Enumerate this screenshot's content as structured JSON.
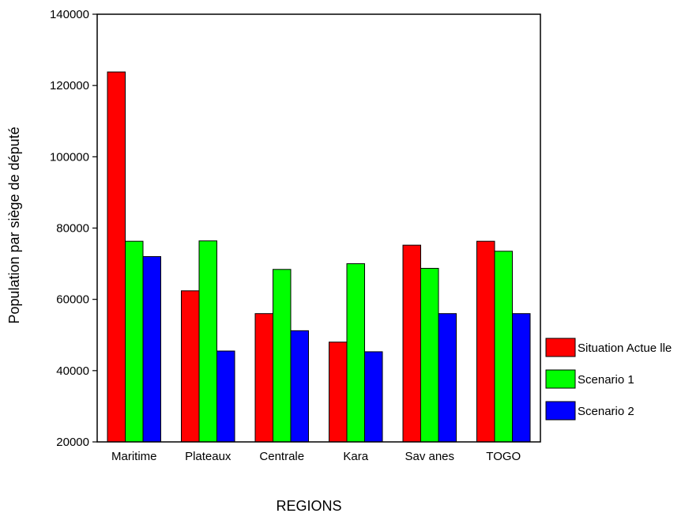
{
  "chart_data": {
    "type": "bar",
    "title": "",
    "xlabel": "REGIONS",
    "ylabel": "Population par siège de député",
    "categories": [
      "Maritime",
      "Plateaux",
      "Centrale",
      "Kara",
      "Sav anes",
      "TOGO"
    ],
    "series": [
      {
        "name": "Situation Actue lle",
        "color": "#ff0000",
        "values": [
          123800,
          62400,
          56000,
          48000,
          75200,
          76300
        ]
      },
      {
        "name": "Scenario 1",
        "color": "#00ff00",
        "values": [
          76300,
          76400,
          68400,
          70000,
          68700,
          73500
        ]
      },
      {
        "name": "Scenario 2",
        "color": "#0000ff",
        "values": [
          72000,
          45500,
          51200,
          45300,
          56000,
          56000
        ]
      }
    ],
    "ylim": [
      20000,
      140000
    ],
    "yticks": [
      20000,
      40000,
      60000,
      80000,
      100000,
      120000,
      140000
    ],
    "legend": "right",
    "grid": false
  }
}
